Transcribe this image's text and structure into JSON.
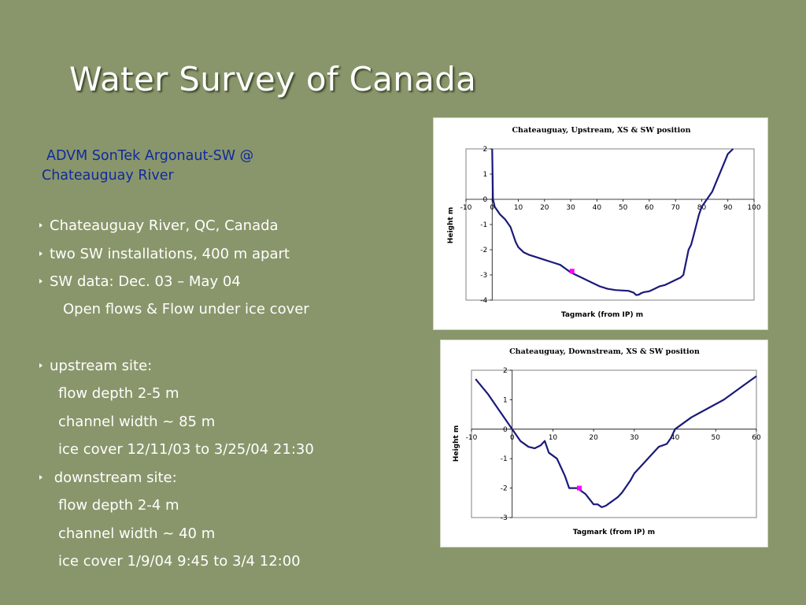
{
  "slide": {
    "title": "Water Survey of Canada",
    "subtitle_line1": "ADVM SonTek Argonaut-SW @",
    "subtitle_line2": "Chateauguay River",
    "bullets": [
      {
        "text": "Chateauguay River, QC, Canada",
        "arrow": true
      },
      {
        "text": "two SW installations, 400 m apart",
        "arrow": true
      },
      {
        "text": "SW data:  Dec. 03 – May 04",
        "arrow": true
      },
      {
        "text": "Open flows & Flow under ice cover",
        "arrow": false
      },
      {
        "text": "upstream site:",
        "arrow": true
      },
      {
        "text": "flow depth    2-5 m",
        "arrow": false
      },
      {
        "text": "channel width   ~ 85 m",
        "arrow": false
      },
      {
        "text": "ice cover  12/11/03 to 3/25/04 21:30",
        "arrow": false
      },
      {
        "text": " downstream site:",
        "arrow": true
      },
      {
        "text": "flow depth    2-4 m",
        "arrow": false
      },
      {
        "text": "channel width   ~ 40 m",
        "arrow": false
      },
      {
        "text": "ice cover  1/9/04 9:45 to 3/4 12:00",
        "arrow": false
      }
    ]
  },
  "colors": {
    "background": "#89966B",
    "subtitle": "#102A9C",
    "line": "#1A1A7A",
    "marker": "#FF00FF"
  },
  "chart_data": [
    {
      "type": "line",
      "title": "Chateauguay, Upstream,  XS & SW position",
      "xlabel": "Tagmark  (from IP)      m",
      "ylabel": "Height   m",
      "xlim": [
        -10,
        100
      ],
      "ylim": [
        -4,
        2
      ],
      "xticks": [
        -10,
        0,
        10,
        20,
        30,
        40,
        50,
        60,
        70,
        80,
        90,
        100
      ],
      "yticks": [
        2,
        1,
        0,
        -1,
        -2,
        -3,
        -4
      ],
      "series": [
        {
          "x": [
            0,
            0.3,
            1,
            3,
            5,
            7,
            8,
            9,
            10,
            12,
            14,
            17,
            20,
            23,
            26,
            28,
            30,
            32,
            35,
            38,
            41,
            44,
            47,
            50,
            52,
            54,
            55,
            56,
            57,
            58,
            60,
            62,
            64,
            66,
            68,
            70,
            72,
            73,
            74,
            75,
            76,
            77,
            78,
            79,
            80,
            82,
            84,
            86,
            88,
            90,
            92
          ],
          "y": [
            2,
            0,
            -0.3,
            -0.6,
            -0.8,
            -1.1,
            -1.4,
            -1.7,
            -1.9,
            -2.1,
            -2.2,
            -2.3,
            -2.4,
            -2.5,
            -2.6,
            -2.75,
            -2.9,
            -3.0,
            -3.15,
            -3.3,
            -3.45,
            -3.55,
            -3.6,
            -3.62,
            -3.63,
            -3.7,
            -3.8,
            -3.78,
            -3.72,
            -3.68,
            -3.65,
            -3.55,
            -3.45,
            -3.4,
            -3.3,
            -3.2,
            -3.1,
            -3.0,
            -2.5,
            -2.0,
            -1.8,
            -1.4,
            -1.0,
            -0.6,
            -0.3,
            0.0,
            0.3,
            0.8,
            1.3,
            1.8,
            2.0
          ]
        }
      ],
      "marker": {
        "x": 30.5,
        "y": -2.85
      }
    },
    {
      "type": "line",
      "title": "Chateauguay, Downstream,  XS & SW position",
      "xlabel": "Tagmark  (from IP)      m",
      "ylabel": "Height   m",
      "xlim": [
        -10,
        60
      ],
      "ylim": [
        -3,
        2
      ],
      "xticks": [
        -10,
        0,
        10,
        20,
        30,
        40,
        50,
        60
      ],
      "yticks": [
        2,
        1,
        0,
        -1,
        -2,
        -3
      ],
      "series": [
        {
          "x": [
            -9,
            -6,
            -3,
            0,
            2,
            4,
            5.5,
            7,
            8,
            9,
            11,
            12,
            13,
            14,
            15,
            16,
            18,
            20,
            21,
            22,
            23,
            24,
            25,
            26,
            27,
            28,
            29,
            30,
            32,
            34,
            36,
            38,
            39,
            40,
            44,
            48,
            52,
            56,
            60
          ],
          "y": [
            1.7,
            1.2,
            0.6,
            0.0,
            -0.4,
            -0.6,
            -0.65,
            -0.55,
            -0.4,
            -0.8,
            -1.0,
            -1.3,
            -1.6,
            -2.0,
            -2.0,
            -2.0,
            -2.2,
            -2.55,
            -2.55,
            -2.65,
            -2.6,
            -2.5,
            -2.4,
            -2.3,
            -2.15,
            -1.95,
            -1.75,
            -1.5,
            -1.2,
            -0.9,
            -0.6,
            -0.5,
            -0.3,
            0.0,
            0.4,
            0.7,
            1.0,
            1.4,
            1.8
          ]
        }
      ],
      "marker": {
        "x": 16.5,
        "y": -2.0
      }
    }
  ]
}
